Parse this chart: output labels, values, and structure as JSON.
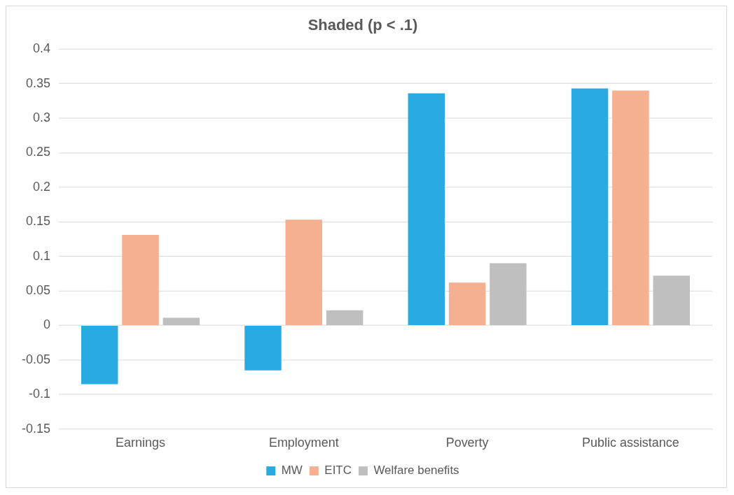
{
  "chart_data": {
    "type": "bar",
    "title": "Shaded (p < .1)",
    "categories": [
      "Earnings",
      "Employment",
      "Poverty",
      "Public assistance"
    ],
    "series": [
      {
        "name": "MW",
        "color": "#29abe2",
        "values": [
          -0.085,
          -0.065,
          0.336,
          0.343
        ]
      },
      {
        "name": "EITC",
        "color": "#f5b08f",
        "values": [
          0.131,
          0.153,
          0.062,
          0.34
        ]
      },
      {
        "name": "Welfare benefits",
        "color": "#bfbfbf",
        "values": [
          0.011,
          0.022,
          0.09,
          0.072
        ]
      }
    ],
    "ylim": [
      -0.15,
      0.4
    ],
    "yticks": [
      -0.15,
      -0.1,
      -0.05,
      0,
      0.05,
      0.1,
      0.15,
      0.2,
      0.25,
      0.3,
      0.35,
      0.4
    ],
    "grid": "y",
    "legend": "bottom"
  }
}
